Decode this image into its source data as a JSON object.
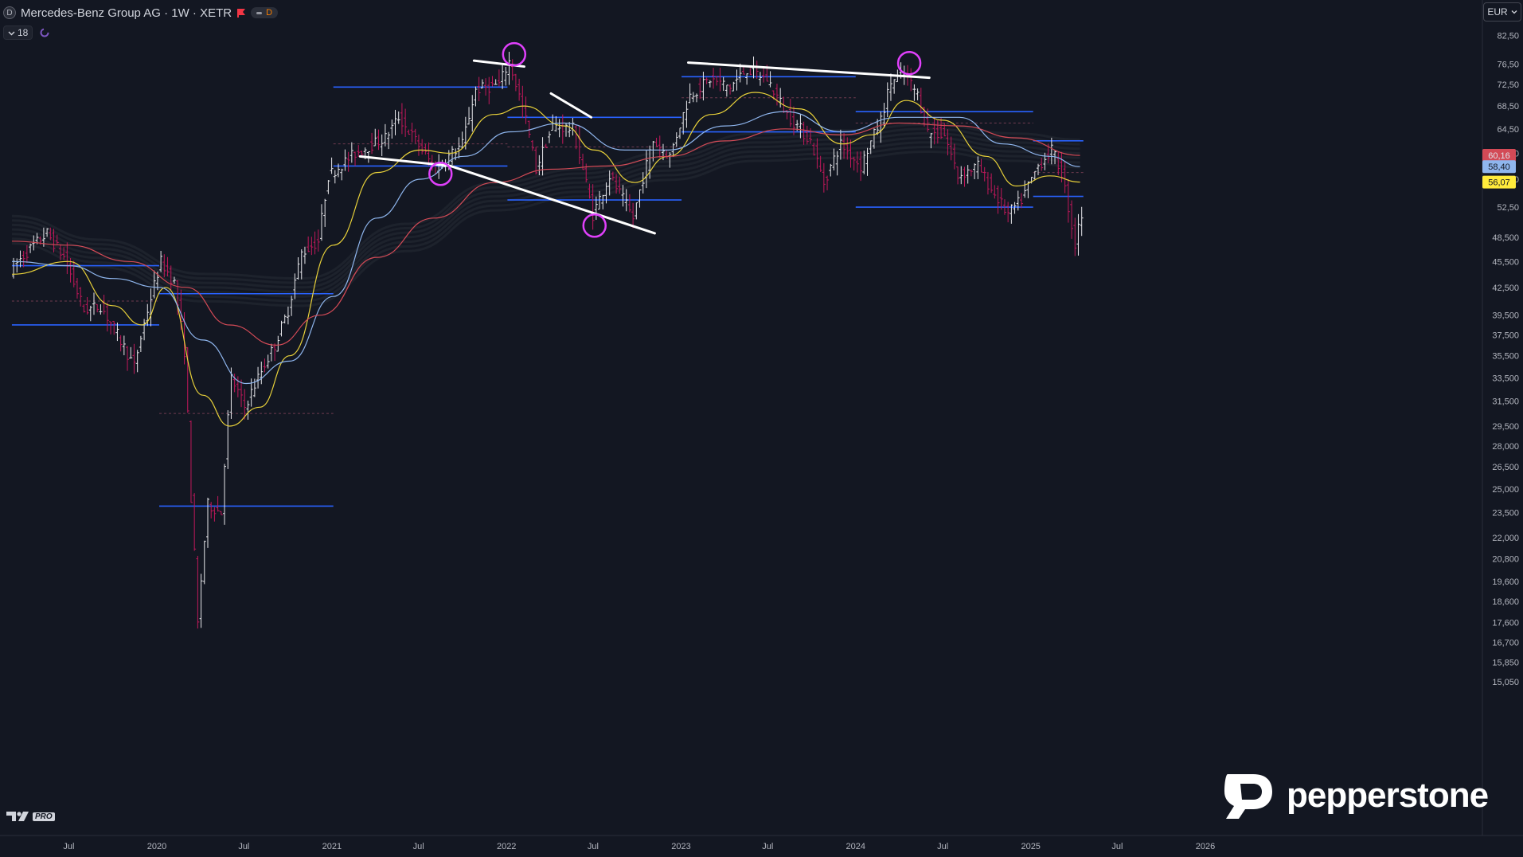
{
  "header": {
    "symbol_badge": "D",
    "title": "Mercedes-Benz Group AG · 1W · XETR",
    "flag_icon": "flag-icon",
    "status_badge": "D",
    "indicator_count": "18"
  },
  "currency": "EUR",
  "logos": {
    "tv_pro": "PRO",
    "pepperstone": "pepperstone"
  },
  "chart_data": {
    "type": "candlestick",
    "title": "",
    "scale": "log",
    "ylim": [
      15.05,
      84.5
    ],
    "y_ticks": [
      "82,50",
      "76,50",
      "72,50",
      "68,50",
      "64,50",
      "60,50",
      "56,50",
      "52,50",
      "48,500",
      "45,500",
      "42,500",
      "39,500",
      "37,500",
      "35,500",
      "33,500",
      "31,500",
      "29,500",
      "28,000",
      "26,500",
      "25,000",
      "23,500",
      "22,000",
      "20,800",
      "19,600",
      "18,600",
      "17,600",
      "16,700",
      "15,850",
      "15,050"
    ],
    "x_ticks": [
      {
        "label": "Jul",
        "date": "2019-07-01"
      },
      {
        "label": "2020",
        "date": "2020-01-01"
      },
      {
        "label": "Jul",
        "date": "2020-07-01"
      },
      {
        "label": "2021",
        "date": "2021-01-01"
      },
      {
        "label": "Jul",
        "date": "2021-07-01"
      },
      {
        "label": "2022",
        "date": "2022-01-01"
      },
      {
        "label": "Jul",
        "date": "2022-07-01"
      },
      {
        "label": "2023",
        "date": "2023-01-01"
      },
      {
        "label": "Jul",
        "date": "2023-07-01"
      },
      {
        "label": "2024",
        "date": "2024-01-01"
      },
      {
        "label": "Jul",
        "date": "2024-07-01"
      },
      {
        "label": "2025",
        "date": "2025-01-01"
      },
      {
        "label": "Jul",
        "date": "2025-07-01"
      },
      {
        "label": "2026",
        "date": "2026-01-01"
      }
    ],
    "price_path": [
      [
        "2019-03-04",
        44.5
      ],
      [
        "2019-04-22",
        47.5
      ],
      [
        "2019-05-20",
        49.0
      ],
      [
        "2019-06-24",
        46.0
      ],
      [
        "2019-08-05",
        40.0
      ],
      [
        "2019-09-09",
        40.5
      ],
      [
        "2019-10-14",
        37.5
      ],
      [
        "2019-11-18",
        34.5
      ],
      [
        "2019-12-16",
        40.0
      ],
      [
        "2020-01-13",
        45.5
      ],
      [
        "2020-02-10",
        43.0
      ],
      [
        "2020-03-02",
        36.0
      ],
      [
        "2020-03-16",
        24.5
      ],
      [
        "2020-03-30",
        17.5
      ],
      [
        "2020-04-20",
        24.0
      ],
      [
        "2020-05-18",
        23.5
      ],
      [
        "2020-06-08",
        33.5
      ],
      [
        "2020-07-06",
        31.0
      ],
      [
        "2020-08-03",
        33.5
      ],
      [
        "2020-09-07",
        36.5
      ],
      [
        "2020-10-05",
        40.0
      ],
      [
        "2020-11-02",
        46.5
      ],
      [
        "2020-12-07",
        48.0
      ],
      [
        "2020-12-28",
        57.0
      ],
      [
        "2021-02-22",
        60.5
      ],
      [
        "2021-04-26",
        63.0
      ],
      [
        "2021-05-24",
        66.5
      ],
      [
        "2021-07-12",
        61.0
      ],
      [
        "2021-08-09",
        58.0
      ],
      [
        "2021-10-04",
        62.0
      ],
      [
        "2021-11-01",
        71.5
      ],
      [
        "2021-12-20",
        72.5
      ],
      [
        "2022-01-10",
        77.0
      ],
      [
        "2022-02-14",
        66.0
      ],
      [
        "2022-03-07",
        58.0
      ],
      [
        "2022-04-11",
        65.0
      ],
      [
        "2022-05-23",
        64.5
      ],
      [
        "2022-07-04",
        51.5
      ],
      [
        "2022-08-08",
        57.0
      ],
      [
        "2022-09-26",
        51.0
      ],
      [
        "2022-11-07",
        62.5
      ],
      [
        "2022-12-12",
        60.0
      ],
      [
        "2023-01-23",
        70.5
      ],
      [
        "2023-03-06",
        73.5
      ],
      [
        "2023-04-17",
        72.0
      ],
      [
        "2023-05-22",
        75.5
      ],
      [
        "2023-07-03",
        73.5
      ],
      [
        "2023-08-14",
        67.0
      ],
      [
        "2023-10-02",
        62.5
      ],
      [
        "2023-10-30",
        56.0
      ],
      [
        "2023-12-04",
        62.0
      ],
      [
        "2024-01-15",
        58.5
      ],
      [
        "2024-02-26",
        66.0
      ],
      [
        "2024-03-18",
        73.0
      ],
      [
        "2024-04-15",
        74.5
      ],
      [
        "2024-05-13",
        70.5
      ],
      [
        "2024-06-03",
        64.0
      ],
      [
        "2024-07-08",
        63.5
      ],
      [
        "2024-08-05",
        57.0
      ],
      [
        "2024-09-16",
        58.5
      ],
      [
        "2024-10-14",
        55.0
      ],
      [
        "2024-11-18",
        51.5
      ],
      [
        "2024-12-16",
        53.5
      ],
      [
        "2025-01-20",
        58.5
      ],
      [
        "2025-02-17",
        61.0
      ],
      [
        "2025-03-10",
        57.5
      ],
      [
        "2025-04-07",
        47.5
      ],
      [
        "2025-04-14",
        50.5
      ]
    ],
    "moving_averages": [
      {
        "color": "#e8d13a",
        "points": [
          [
            "2019-03-04",
            44.0
          ],
          [
            "2019-07-01",
            45.5
          ],
          [
            "2019-10-01",
            40.5
          ],
          [
            "2019-12-01",
            38.5
          ],
          [
            "2020-01-20",
            42.5
          ],
          [
            "2020-04-06",
            32.0
          ],
          [
            "2020-06-01",
            29.5
          ],
          [
            "2020-08-03",
            31.0
          ],
          [
            "2020-10-05",
            35.5
          ],
          [
            "2021-01-04",
            47.5
          ],
          [
            "2021-04-05",
            57.5
          ],
          [
            "2021-07-05",
            61.0
          ],
          [
            "2021-09-06",
            60.5
          ],
          [
            "2021-12-06",
            67.0
          ],
          [
            "2022-02-07",
            68.5
          ],
          [
            "2022-05-02",
            65.0
          ],
          [
            "2022-07-04",
            61.0
          ],
          [
            "2022-09-26",
            56.0
          ],
          [
            "2022-12-05",
            60.0
          ],
          [
            "2023-03-06",
            67.0
          ],
          [
            "2023-06-05",
            71.0
          ],
          [
            "2023-09-04",
            68.0
          ],
          [
            "2023-12-04",
            62.0
          ],
          [
            "2024-02-05",
            63.5
          ],
          [
            "2024-04-15",
            69.5
          ],
          [
            "2024-07-01",
            66.0
          ],
          [
            "2024-09-30",
            60.0
          ],
          [
            "2024-12-02",
            55.5
          ],
          [
            "2025-02-10",
            57.0
          ],
          [
            "2025-04-14",
            56.07
          ]
        ]
      },
      {
        "color": "#8fb6ee",
        "points": [
          [
            "2019-03-04",
            45.5
          ],
          [
            "2019-07-01",
            45.0
          ],
          [
            "2019-10-01",
            43.5
          ],
          [
            "2020-01-06",
            42.5
          ],
          [
            "2020-04-06",
            37.0
          ],
          [
            "2020-07-06",
            33.0
          ],
          [
            "2020-10-05",
            35.0
          ],
          [
            "2021-01-04",
            41.5
          ],
          [
            "2021-04-05",
            51.0
          ],
          [
            "2021-07-05",
            56.5
          ],
          [
            "2021-10-04",
            60.0
          ],
          [
            "2022-01-10",
            64.0
          ],
          [
            "2022-05-02",
            65.5
          ],
          [
            "2022-09-05",
            61.0
          ],
          [
            "2022-12-05",
            61.0
          ],
          [
            "2023-04-03",
            65.0
          ],
          [
            "2023-08-07",
            67.5
          ],
          [
            "2023-12-04",
            64.0
          ],
          [
            "2024-04-01",
            66.5
          ],
          [
            "2024-08-05",
            66.5
          ],
          [
            "2024-11-04",
            62.0
          ],
          [
            "2025-02-10",
            60.0
          ],
          [
            "2025-04-14",
            58.4
          ]
        ]
      },
      {
        "color": "#d34a56",
        "points": [
          [
            "2019-03-04",
            48.0
          ],
          [
            "2019-07-01",
            47.5
          ],
          [
            "2019-11-04",
            45.5
          ],
          [
            "2020-03-02",
            42.5
          ],
          [
            "2020-06-01",
            38.5
          ],
          [
            "2020-09-07",
            36.5
          ],
          [
            "2020-12-07",
            39.5
          ],
          [
            "2021-04-05",
            46.0
          ],
          [
            "2021-08-02",
            51.0
          ],
          [
            "2021-12-06",
            56.0
          ],
          [
            "2022-04-04",
            58.0
          ],
          [
            "2022-08-01",
            58.5
          ],
          [
            "2022-12-05",
            60.0
          ],
          [
            "2023-04-03",
            62.5
          ],
          [
            "2023-08-07",
            64.5
          ],
          [
            "2023-12-04",
            63.5
          ],
          [
            "2024-04-01",
            65.5
          ],
          [
            "2024-08-05",
            65.0
          ],
          [
            "2024-12-02",
            63.0
          ],
          [
            "2025-04-14",
            60.16
          ]
        ]
      },
      {
        "color": "#1f232d",
        "points": [
          [
            "2019-03-04",
            49.5
          ],
          [
            "2019-09-02",
            46.5
          ],
          [
            "2020-04-06",
            42.5
          ],
          [
            "2020-11-02",
            42.0
          ],
          [
            "2021-06-07",
            48.5
          ],
          [
            "2021-12-06",
            54.0
          ],
          [
            "2022-06-06",
            56.0
          ],
          [
            "2022-12-05",
            58.5
          ],
          [
            "2023-06-05",
            61.5
          ],
          [
            "2023-12-05",
            62.0
          ],
          [
            "2024-06-03",
            63.0
          ],
          [
            "2024-12-02",
            61.5
          ],
          [
            "2025-04-14",
            60.5
          ]
        ]
      }
    ],
    "price_labels": [
      {
        "value": 60.16,
        "text": "60,16",
        "color": "#e0e3eb",
        "bg": "#d34a56"
      },
      {
        "value": 58.4,
        "text": "58,40",
        "color": "#131722",
        "bg": "#8fb6ee"
      },
      {
        "value": 56.07,
        "text": "56,07",
        "color": "#131722",
        "bg": "#ffeb3b"
      }
    ],
    "horizontal_levels": [
      {
        "value": 45.0,
        "from": "2019-03-04",
        "to": "2020-01-06"
      },
      {
        "value": 38.5,
        "from": "2019-03-04",
        "to": "2020-01-06"
      },
      {
        "value": 41.8,
        "from": "2020-01-06",
        "to": "2021-01-04"
      },
      {
        "value": 23.9,
        "from": "2020-01-06",
        "to": "2021-01-04"
      },
      {
        "value": 72.0,
        "from": "2021-01-04",
        "to": "2022-01-03"
      },
      {
        "value": 58.5,
        "from": "2021-01-04",
        "to": "2022-01-03"
      },
      {
        "value": 66.5,
        "from": "2022-01-03",
        "to": "2023-01-02"
      },
      {
        "value": 53.5,
        "from": "2022-01-03",
        "to": "2023-01-02"
      },
      {
        "value": 74.0,
        "from": "2023-01-02",
        "to": "2024-01-01"
      },
      {
        "value": 64.0,
        "from": "2023-01-02",
        "to": "2024-01-01"
      },
      {
        "value": 67.5,
        "from": "2024-01-01",
        "to": "2025-01-06"
      },
      {
        "value": 52.5,
        "from": "2024-01-01",
        "to": "2025-01-06"
      },
      {
        "value": 62.5,
        "from": "2025-01-06",
        "to": "2025-04-21"
      },
      {
        "value": 54.0,
        "from": "2025-01-06",
        "to": "2025-04-21"
      }
    ],
    "dashed_levels": [
      {
        "value": 41.0,
        "from": "2019-03-04",
        "to": "2020-01-06"
      },
      {
        "value": 30.5,
        "from": "2020-01-06",
        "to": "2021-01-04"
      },
      {
        "value": 62.0,
        "from": "2021-01-04",
        "to": "2022-01-03"
      },
      {
        "value": 61.5,
        "from": "2022-01-03",
        "to": "2023-01-02"
      },
      {
        "value": 70.0,
        "from": "2023-01-02",
        "to": "2024-01-01"
      },
      {
        "value": 65.5,
        "from": "2024-01-01",
        "to": "2025-01-06"
      },
      {
        "value": 57.5,
        "from": "2025-01-06",
        "to": "2025-04-21"
      }
    ],
    "trendlines": [
      {
        "from": [
          "2021-03-01",
          60.0
        ],
        "to": [
          "2021-09-06",
          58.5
        ]
      },
      {
        "from": [
          "2021-09-06",
          58.5
        ],
        "to": [
          "2022-11-07",
          49.0
        ]
      },
      {
        "from": [
          "2021-10-25",
          77.2
        ],
        "to": [
          "2022-02-07",
          76.0
        ]
      },
      {
        "from": [
          "2022-04-04",
          70.8
        ],
        "to": [
          "2022-06-27",
          66.5
        ]
      },
      {
        "from": [
          "2023-01-16",
          76.8
        ],
        "to": [
          "2024-06-03",
          73.8
        ]
      }
    ],
    "circles": [
      {
        "date": "2021-08-16",
        "price": 57.3
      },
      {
        "date": "2022-01-17",
        "price": 78.5
      },
      {
        "date": "2022-07-04",
        "price": 50.0
      },
      {
        "date": "2024-04-22",
        "price": 76.7
      }
    ]
  }
}
